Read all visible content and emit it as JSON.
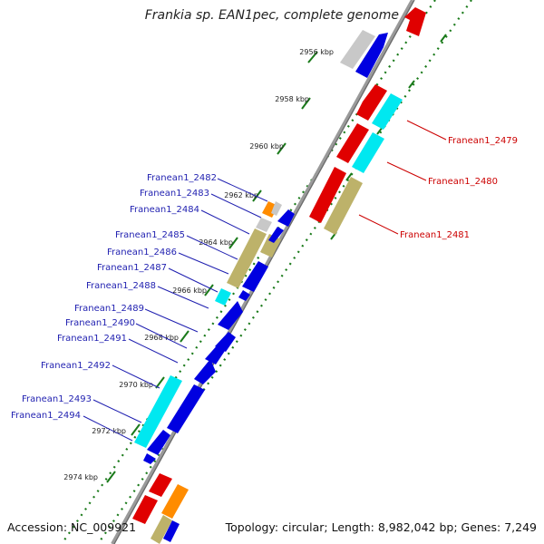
{
  "title": "Frankia sp. EAN1pec, complete genome",
  "footer": {
    "accession": "Accession: NC_009921",
    "topology": "Topology: circular; Length: 8,982,042 bp; Genes: 7,249"
  },
  "colors": {
    "backbone": "#8c8c8c",
    "tick": "#1a7a1a",
    "gene_blue": "#0000e0",
    "gene_red": "#e00000",
    "gene_cyan": "#00e8f0",
    "gene_khaki": "#bdb26a",
    "gene_orange": "#ff8c00",
    "gene_gray": "#c8c8c8",
    "label_blue": "#1f1fb0",
    "label_red": "#cc0000"
  },
  "ticks": [
    "2956 kbp",
    "2958 kbp",
    "2960 kbp",
    "2962 kbp",
    "2964 kbp",
    "2966 kbp",
    "2968 kbp",
    "2970 kbp",
    "2972 kbp",
    "2974 kbp"
  ],
  "left_labels": [
    "Franean1_2482",
    "Franean1_2483",
    "Franean1_2484",
    "Franean1_2485",
    "Franean1_2486",
    "Franean1_2487",
    "Franean1_2488",
    "Franean1_2489",
    "Franean1_2490",
    "Franean1_2491",
    "Franean1_2492",
    "Franean1_2493",
    "Franean1_2494"
  ],
  "right_labels": [
    "Franean1_2479",
    "Franean1_2480",
    "Franean1_2481"
  ]
}
